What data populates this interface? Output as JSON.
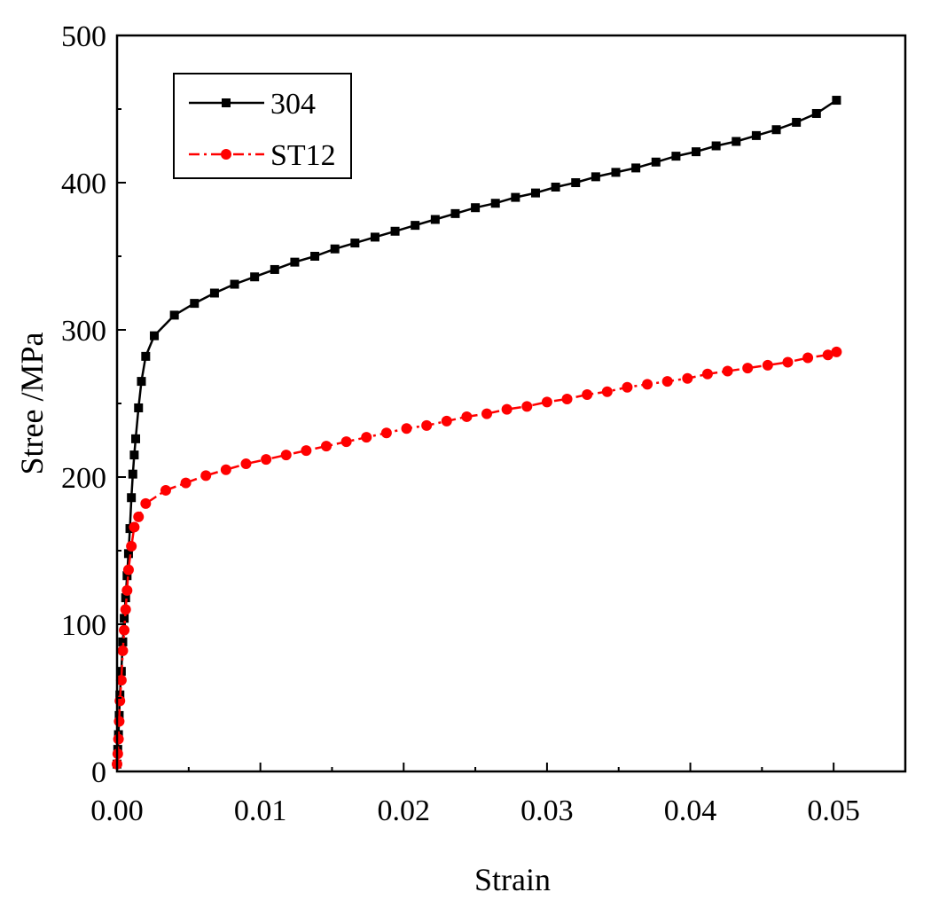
{
  "chart_data": {
    "type": "line",
    "title": "",
    "xlabel": "Strain",
    "ylabel": "Stree /MPa",
    "xlim": [
      0.0,
      0.055
    ],
    "ylim": [
      0,
      500
    ],
    "xticks": [
      0.0,
      0.01,
      0.02,
      0.03,
      0.04,
      0.05
    ],
    "xtick_labels": [
      "0.00",
      "0.01",
      "0.02",
      "0.03",
      "0.04",
      "0.05"
    ],
    "yticks": [
      0,
      100,
      200,
      300,
      400,
      500
    ],
    "ytick_labels": [
      "0",
      "100",
      "200",
      "300",
      "400",
      "500"
    ],
    "grid": false,
    "legend_position": "top-left",
    "series": [
      {
        "name": "304",
        "color": "#000000",
        "marker": "square",
        "line_style": "solid",
        "x": [
          0.0,
          5e-05,
          0.0001,
          0.00015,
          0.0002,
          0.0003,
          0.0004,
          0.0005,
          0.0006,
          0.0007,
          0.0008,
          0.0009,
          0.001,
          0.0011,
          0.0012,
          0.0013,
          0.0015,
          0.0017,
          0.002,
          0.0026,
          0.004,
          0.0054,
          0.0068,
          0.0082,
          0.0096,
          0.011,
          0.0124,
          0.0138,
          0.0152,
          0.0166,
          0.018,
          0.0194,
          0.0208,
          0.0222,
          0.0236,
          0.025,
          0.0264,
          0.0278,
          0.0292,
          0.0306,
          0.032,
          0.0334,
          0.0348,
          0.0362,
          0.0376,
          0.039,
          0.0404,
          0.0418,
          0.0432,
          0.0446,
          0.046,
          0.0474,
          0.0488,
          0.0502
        ],
        "y": [
          5,
          15,
          25,
          38,
          52,
          68,
          88,
          104,
          118,
          133,
          148,
          165,
          186,
          202,
          215,
          226,
          247,
          265,
          282,
          296,
          310,
          318,
          325,
          331,
          336,
          341,
          346,
          350,
          355,
          359,
          363,
          367,
          371,
          375,
          379,
          383,
          386,
          390,
          393,
          397,
          400,
          404,
          407,
          410,
          414,
          418,
          421,
          425,
          428,
          432,
          436,
          441,
          447,
          456
        ]
      },
      {
        "name": "ST12",
        "color": "#ff0000",
        "marker": "circle",
        "line_style": "dash-dot",
        "x": [
          0.0,
          5e-05,
          0.0001,
          0.00015,
          0.0002,
          0.0003,
          0.0004,
          0.0005,
          0.0006,
          0.0007,
          0.0008,
          0.001,
          0.0012,
          0.0015,
          0.002,
          0.0034,
          0.0048,
          0.0062,
          0.0076,
          0.009,
          0.0104,
          0.0118,
          0.0132,
          0.0146,
          0.016,
          0.0174,
          0.0188,
          0.0202,
          0.0216,
          0.023,
          0.0244,
          0.0258,
          0.0272,
          0.0286,
          0.03,
          0.0314,
          0.0328,
          0.0342,
          0.0356,
          0.037,
          0.0384,
          0.0398,
          0.0412,
          0.0426,
          0.044,
          0.0454,
          0.0468,
          0.0482,
          0.0496,
          0.0502
        ],
        "y": [
          5,
          12,
          22,
          34,
          48,
          62,
          82,
          96,
          110,
          123,
          137,
          153,
          166,
          173,
          182,
          191,
          196,
          201,
          205,
          209,
          212,
          215,
          218,
          221,
          224,
          227,
          230,
          233,
          235,
          238,
          241,
          243,
          246,
          248,
          251,
          253,
          256,
          258,
          261,
          263,
          265,
          267,
          270,
          272,
          274,
          276,
          278,
          281,
          283,
          285
        ]
      }
    ]
  }
}
